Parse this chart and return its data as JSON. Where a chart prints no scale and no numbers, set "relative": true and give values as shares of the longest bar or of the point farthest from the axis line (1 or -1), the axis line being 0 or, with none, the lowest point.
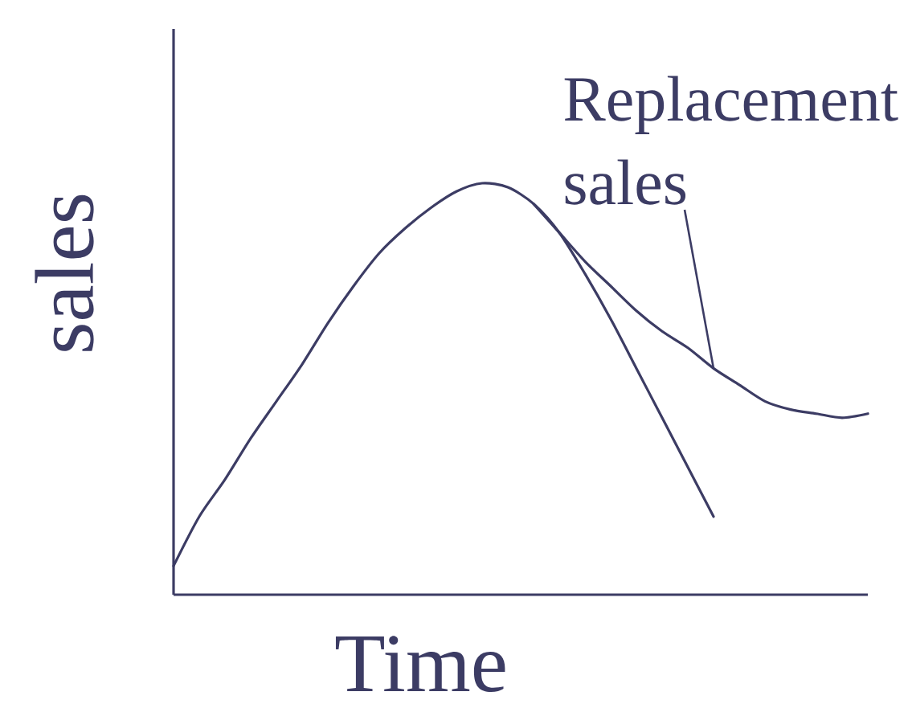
{
  "chart_data": {
    "type": "line",
    "xlabel": "Time",
    "ylabel": "sales",
    "relative": true,
    "categories": [
      null,
      null,
      null,
      null,
      null,
      null,
      null,
      null,
      null,
      null,
      null,
      null,
      null,
      null,
      null,
      null,
      null,
      null,
      null,
      null,
      null,
      null,
      null,
      null,
      null,
      null,
      null,
      null
    ],
    "series": [
      {
        "color": "#3c3c64",
        "values": [
          0.07,
          0.19,
          0.28,
          0.38,
          0.47,
          0.56,
          0.66,
          0.75,
          0.83,
          0.89,
          0.94,
          0.98,
          1.0,
          0.99,
          0.95,
          0.88,
          0.78,
          0.67,
          0.55,
          0.43,
          0.31,
          0.19,
          null,
          null,
          null,
          null,
          null,
          null
        ]
      },
      {
        "name": "Replacement sales",
        "color": "#3c3c64",
        "values": [
          null,
          null,
          null,
          null,
          null,
          null,
          null,
          null,
          null,
          null,
          null,
          null,
          null,
          null,
          0.95,
          0.88,
          0.81,
          0.75,
          0.69,
          0.64,
          0.6,
          0.55,
          0.51,
          0.47,
          0.45,
          0.44,
          0.43,
          0.44
        ]
      }
    ]
  }
}
